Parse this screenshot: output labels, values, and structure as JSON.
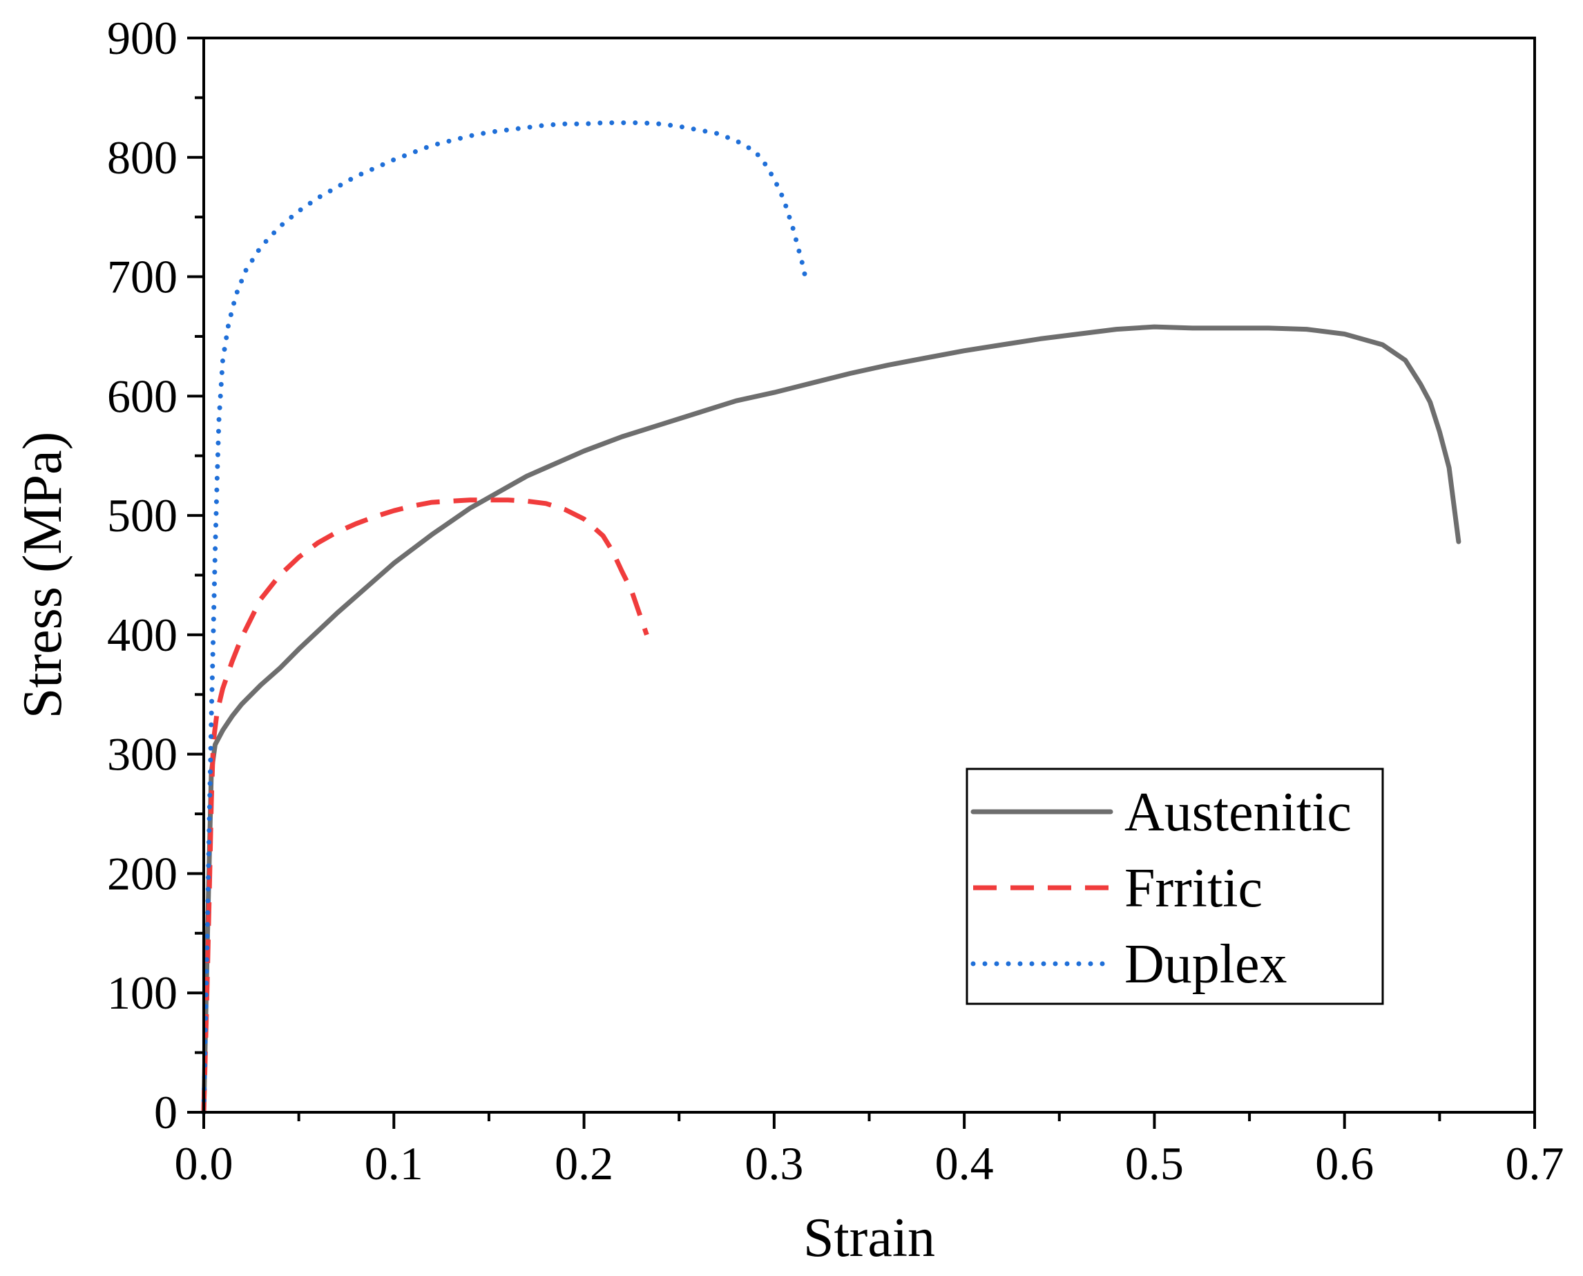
{
  "chart_data": {
    "type": "line",
    "title": "",
    "xlabel": "Strain",
    "ylabel": "Stress (MPa)",
    "xlim": [
      0,
      0.7
    ],
    "ylim": [
      0,
      900
    ],
    "x_ticks": [
      "0.0",
      "0.1",
      "0.2",
      "0.3",
      "0.4",
      "0.5",
      "0.6",
      "0.7"
    ],
    "y_ticks": [
      "0",
      "100",
      "200",
      "300",
      "400",
      "500",
      "600",
      "700",
      "800",
      "900"
    ],
    "grid": false,
    "legend_position": "bottom-right",
    "series": [
      {
        "name": "Austenitic",
        "style": "solid",
        "color": "#6e6e6e",
        "points": [
          [
            0,
            0
          ],
          [
            0.002,
            150
          ],
          [
            0.004,
            285
          ],
          [
            0.006,
            308
          ],
          [
            0.01,
            320
          ],
          [
            0.015,
            332
          ],
          [
            0.02,
            342
          ],
          [
            0.03,
            358
          ],
          [
            0.04,
            372
          ],
          [
            0.05,
            388
          ],
          [
            0.06,
            403
          ],
          [
            0.07,
            418
          ],
          [
            0.08,
            432
          ],
          [
            0.09,
            446
          ],
          [
            0.1,
            460
          ],
          [
            0.11,
            472
          ],
          [
            0.12,
            484
          ],
          [
            0.13,
            495
          ],
          [
            0.14,
            506
          ],
          [
            0.15,
            515
          ],
          [
            0.16,
            524
          ],
          [
            0.17,
            533
          ],
          [
            0.18,
            540
          ],
          [
            0.19,
            547
          ],
          [
            0.2,
            554
          ],
          [
            0.22,
            566
          ],
          [
            0.24,
            576
          ],
          [
            0.26,
            586
          ],
          [
            0.28,
            596
          ],
          [
            0.3,
            603
          ],
          [
            0.32,
            611
          ],
          [
            0.34,
            619
          ],
          [
            0.36,
            626
          ],
          [
            0.38,
            632
          ],
          [
            0.4,
            638
          ],
          [
            0.42,
            643
          ],
          [
            0.44,
            648
          ],
          [
            0.46,
            652
          ],
          [
            0.48,
            656
          ],
          [
            0.5,
            658
          ],
          [
            0.52,
            657
          ],
          [
            0.54,
            657
          ],
          [
            0.56,
            657
          ],
          [
            0.58,
            656
          ],
          [
            0.6,
            652
          ],
          [
            0.62,
            643
          ],
          [
            0.632,
            630
          ],
          [
            0.64,
            610
          ],
          [
            0.645,
            595
          ],
          [
            0.65,
            570
          ],
          [
            0.655,
            540
          ],
          [
            0.66,
            478
          ]
        ]
      },
      {
        "name": "Frritic",
        "style": "dashed",
        "color": "#f03c3c",
        "points": [
          [
            0,
            0
          ],
          [
            0.001,
            60
          ],
          [
            0.002,
            120
          ],
          [
            0.003,
            190
          ],
          [
            0.004,
            260
          ],
          [
            0.005,
            310
          ],
          [
            0.007,
            335
          ],
          [
            0.01,
            355
          ],
          [
            0.015,
            378
          ],
          [
            0.02,
            398
          ],
          [
            0.03,
            430
          ],
          [
            0.04,
            450
          ],
          [
            0.05,
            465
          ],
          [
            0.06,
            477
          ],
          [
            0.07,
            486
          ],
          [
            0.08,
            493
          ],
          [
            0.09,
            499
          ],
          [
            0.1,
            504
          ],
          [
            0.11,
            508
          ],
          [
            0.12,
            511
          ],
          [
            0.13,
            512
          ],
          [
            0.14,
            513
          ],
          [
            0.15,
            513
          ],
          [
            0.16,
            513
          ],
          [
            0.17,
            512
          ],
          [
            0.18,
            510
          ],
          [
            0.19,
            505
          ],
          [
            0.2,
            497
          ],
          [
            0.21,
            483
          ],
          [
            0.215,
            470
          ],
          [
            0.22,
            453
          ],
          [
            0.225,
            437
          ],
          [
            0.233,
            400
          ]
        ]
      },
      {
        "name": "Duplex",
        "style": "dotted",
        "color": "#1f6fd8",
        "points": [
          [
            0,
            0
          ],
          [
            0.001,
            80
          ],
          [
            0.002,
            160
          ],
          [
            0.003,
            250
          ],
          [
            0.004,
            330
          ],
          [
            0.005,
            400
          ],
          [
            0.006,
            470
          ],
          [
            0.007,
            530
          ],
          [
            0.008,
            580
          ],
          [
            0.01,
            630
          ],
          [
            0.013,
            660
          ],
          [
            0.017,
            685
          ],
          [
            0.022,
            705
          ],
          [
            0.03,
            725
          ],
          [
            0.04,
            742
          ],
          [
            0.05,
            755
          ],
          [
            0.06,
            766
          ],
          [
            0.07,
            775
          ],
          [
            0.08,
            784
          ],
          [
            0.09,
            791
          ],
          [
            0.1,
            798
          ],
          [
            0.11,
            804
          ],
          [
            0.12,
            810
          ],
          [
            0.13,
            814
          ],
          [
            0.14,
            818
          ],
          [
            0.15,
            821
          ],
          [
            0.16,
            823
          ],
          [
            0.17,
            825
          ],
          [
            0.18,
            827
          ],
          [
            0.19,
            828
          ],
          [
            0.2,
            828
          ],
          [
            0.21,
            829
          ],
          [
            0.22,
            829
          ],
          [
            0.23,
            829
          ],
          [
            0.24,
            828
          ],
          [
            0.25,
            826
          ],
          [
            0.26,
            823
          ],
          [
            0.27,
            820
          ],
          [
            0.28,
            814
          ],
          [
            0.29,
            805
          ],
          [
            0.295,
            795
          ],
          [
            0.3,
            782
          ],
          [
            0.305,
            765
          ],
          [
            0.31,
            740
          ],
          [
            0.315,
            710
          ],
          [
            0.317,
            695
          ]
        ]
      }
    ]
  }
}
